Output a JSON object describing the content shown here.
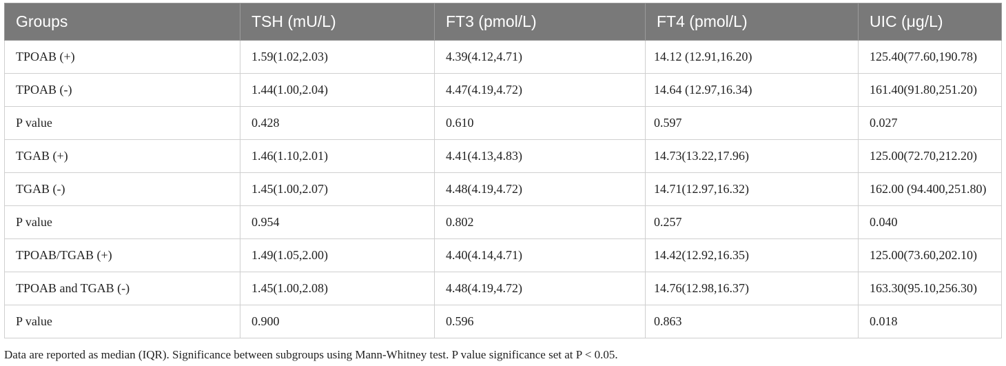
{
  "table": {
    "headers": [
      "Groups",
      "TSH (mU/L)",
      "FT3 (pmol/L)",
      "FT4 (pmol/L)",
      "UIC (μg/L)"
    ],
    "rows": [
      [
        "TPOAB (+)",
        "1.59(1.02,2.03)",
        "4.39(4.12,4.71)",
        "14.12 (12.91,16.20)",
        "125.40(77.60,190.78)"
      ],
      [
        "TPOAB (-)",
        "1.44(1.00,2.04)",
        "4.47(4.19,4.72)",
        "14.64 (12.97,16.34)",
        "161.40(91.80,251.20)"
      ],
      [
        "P value",
        "0.428",
        "0.610",
        "0.597",
        "0.027"
      ],
      [
        "TGAB (+)",
        "1.46(1.10,2.01)",
        "4.41(4.13,4.83)",
        "14.73(13.22,17.96)",
        "125.00(72.70,212.20)"
      ],
      [
        "TGAB (-)",
        "1.45(1.00,2.07)",
        "4.48(4.19,4.72)",
        "14.71(12.97,16.32)",
        "162.00 (94.400,251.80)"
      ],
      [
        "P value",
        "0.954",
        "0.802",
        "0.257",
        "0.040"
      ],
      [
        "TPOAB/TGAB (+)",
        "1.49(1.05,2.00)",
        "4.40(4.14,4.71)",
        "14.42(12.92,16.35)",
        "125.00(73.60,202.10)"
      ],
      [
        "TPOAB and TGAB (-)",
        "1.45(1.00,2.08)",
        "4.48(4.19,4.72)",
        "14.76(12.98,16.37)",
        "163.30(95.10,256.30)"
      ],
      [
        "P value",
        "0.900",
        "0.596",
        "0.863",
        "0.018"
      ]
    ]
  },
  "footnote": "Data are reported as median (IQR). Significance between subgroups using Mann-Whitney test. P value significance set at P < 0.05.",
  "colors": {
    "header_bg": "#797979",
    "header_text": "#ffffff",
    "border": "#cfcfcf"
  }
}
